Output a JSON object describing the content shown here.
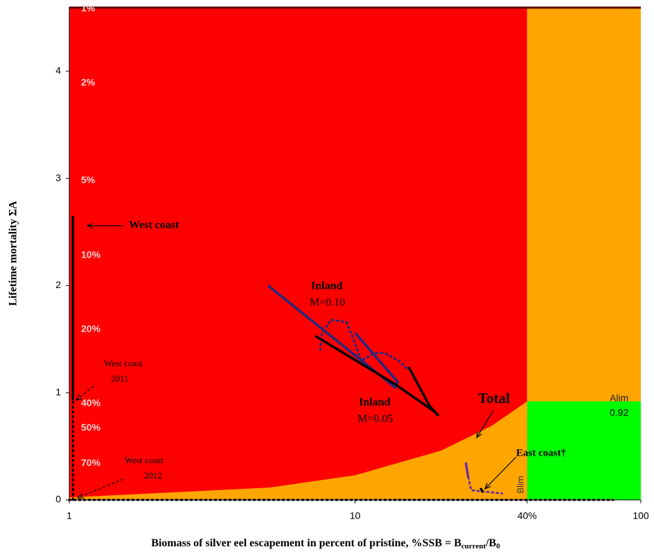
{
  "chart_data": {
    "type": "line",
    "x_label": "Biomass of silver eel escapement in percent of pristine, %SSB = B",
    "x_label_sub1": "current",
    "x_label_mid": "/B",
    "x_label_sub2": "0",
    "y_label": "Lifetime mortality ΣA",
    "xscale": "log",
    "xlim": [
      1,
      100
    ],
    "ylim": [
      0,
      4.6
    ],
    "xticks": [
      1,
      10,
      {
        "value": 40,
        "label": "40%"
      },
      100
    ],
    "yticks": [
      0,
      1,
      2,
      3,
      4
    ],
    "zones": {
      "red": "#ff0000",
      "orange": "#ffa500",
      "green": "#00ff00"
    },
    "blim_curve": {
      "label": "Blim",
      "x": [
        1,
        5,
        10,
        20,
        30,
        40
      ],
      "values": [
        0.023,
        0.115,
        0.23,
        0.46,
        0.69,
        0.92
      ]
    },
    "alim": {
      "label": "Alim",
      "value": 0.92
    },
    "iso_labels": {
      "labels": [
        "1%",
        "2%",
        "5%",
        "10%",
        "20%",
        "40%",
        "50%",
        "70%"
      ],
      "y": [
        4.6,
        3.91,
        3.0,
        2.3,
        1.61,
        0.92,
        0.69,
        0.36
      ]
    },
    "series": [
      {
        "color": "#000000",
        "dash": false,
        "x": [
          1.03,
          1.03
        ],
        "values": [
          0.93,
          2.65
        ]
      },
      {
        "color": "#000000",
        "dash": true,
        "x": [
          1.03,
          1.03
        ],
        "values": [
          0,
          0.93
        ]
      },
      {
        "color": "#000000",
        "dash": true,
        "x": [
          1,
          80
        ],
        "values": [
          0,
          0
        ]
      },
      {
        "color": "#1f2a80",
        "dash": false,
        "x": [
          4.96,
          13.8,
          14.1,
          10.0
        ],
        "values": [
          2.0,
          1.05,
          1.1,
          1.56
        ]
      },
      {
        "color": "#1f2a80",
        "dash": true,
        "x": [
          7.55,
          7.67,
          8.25,
          9.33,
          9.86,
          10.5,
          11.7,
          12.7,
          14.2,
          15.4
        ],
        "values": [
          1.4,
          1.56,
          1.68,
          1.66,
          1.5,
          1.3,
          1.37,
          1.37,
          1.3,
          1.21
        ]
      },
      {
        "color": "#000000",
        "dash": false,
        "x": [
          7.26,
          13.8,
          19.05,
          19.5,
          18.2,
          15.4
        ],
        "values": [
          1.53,
          1.08,
          0.82,
          0.79,
          0.88,
          1.24
        ]
      },
      {
        "color": "#7030a0",
        "dash": false,
        "x": [
          24.4,
          24.9
        ],
        "values": [
          0.35,
          0.21
        ]
      },
      {
        "color": "#7030a0",
        "dash": true,
        "x": [
          24.9,
          25.5,
          32.7
        ],
        "values": [
          0.21,
          0.09,
          0.06
        ]
      },
      {
        "color": "#000000",
        "dash": false,
        "x": [
          27.5,
          28.0
        ],
        "values": [
          0.11,
          0.07
        ]
      }
    ],
    "annotations": [
      "West coast",
      "West coast",
      "2011",
      "West coast",
      "2012",
      "Inland",
      "M=0.10",
      "Inland",
      "M=0.05",
      "Total",
      "East coast†"
    ]
  }
}
